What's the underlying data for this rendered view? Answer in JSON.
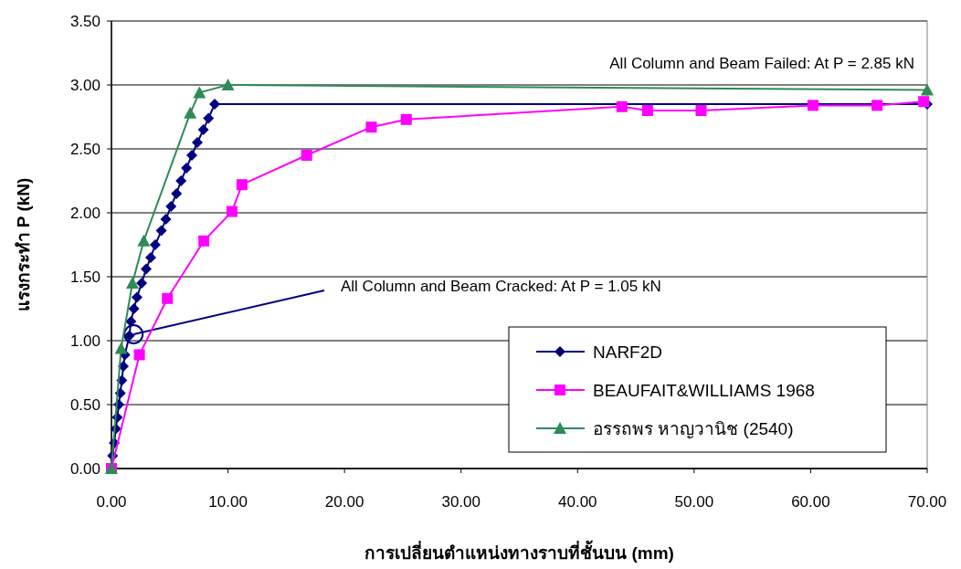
{
  "chart_data": {
    "type": "line",
    "xlabel": "การเปลี่ยนตำแหน่งทางราบที่ชั้นบน (mm)",
    "ylabel": "แรงกระทำ P (kN)",
    "xlim": [
      0,
      70
    ],
    "ylim": [
      0,
      3.5
    ],
    "xticks": [
      {
        "value": 0,
        "label": "0.00"
      },
      {
        "value": 10,
        "label": "10.00"
      },
      {
        "value": 20,
        "label": "20.00"
      },
      {
        "value": 30,
        "label": "30.00"
      },
      {
        "value": 40,
        "label": "40.00"
      },
      {
        "value": 50,
        "label": "50.00"
      },
      {
        "value": 60,
        "label": "60.00"
      },
      {
        "value": 70,
        "label": "70.00"
      }
    ],
    "yticks": [
      {
        "value": 0,
        "label": "0.00"
      },
      {
        "value": 0.5,
        "label": "0.50"
      },
      {
        "value": 1,
        "label": "1.00"
      },
      {
        "value": 1.5,
        "label": "1.50"
      },
      {
        "value": 2,
        "label": "2.00"
      },
      {
        "value": 2.5,
        "label": "2.50"
      },
      {
        "value": 3,
        "label": "3.00"
      },
      {
        "value": 3.5,
        "label": "3.50"
      }
    ],
    "grid": "y",
    "legend": "bottom right",
    "annotations": [
      "All Column and Beam Failed: At P = 2.85 kN",
      {
        "text": "All Column and Beam Cracked: At P = 1.05 kN",
        "x": 1.9,
        "y": 1.05
      }
    ],
    "series": [
      {
        "name": "NARF2D",
        "color": "#000080",
        "marker": "diamond",
        "x": [
          0.1,
          0.24,
          0.37,
          0.5,
          0.63,
          0.76,
          0.89,
          1.02,
          1.15,
          1.54,
          1.67,
          1.93,
          2.19,
          2.59,
          2.98,
          3.37,
          3.76,
          4.28,
          4.67,
          5.11,
          5.58,
          5.97,
          6.44,
          6.9,
          7.37,
          7.89,
          8.33,
          8.86,
          70
        ],
        "values": [
          0.1,
          0.2,
          0.31,
          0.4,
          0.5,
          0.59,
          0.69,
          0.8,
          0.89,
          1.04,
          1.15,
          1.25,
          1.34,
          1.45,
          1.56,
          1.65,
          1.75,
          1.86,
          1.95,
          2.05,
          2.15,
          2.25,
          2.35,
          2.45,
          2.55,
          2.65,
          2.74,
          2.85,
          2.85
        ]
      },
      {
        "name": "BEAUFAIT&WILLIAMS 1968",
        "color": "#ff00ff",
        "marker": "square",
        "x": [
          0,
          2.4,
          4.8,
          7.93,
          10.34,
          11.2,
          16.75,
          22.3,
          25.3,
          43.8,
          46,
          50.6,
          60.2,
          65.7,
          69.7
        ],
        "values": [
          0,
          0.89,
          1.33,
          1.78,
          2.01,
          2.22,
          2.45,
          2.67,
          2.73,
          2.83,
          2.8,
          2.8,
          2.84,
          2.84,
          2.87
        ]
      },
      {
        "name": "อรรถพร หาญวานิช (2540)",
        "color": "#2e8b57",
        "marker": "triangle",
        "x": [
          0,
          0.83,
          1.8,
          2.77,
          6.76,
          7.55,
          10.0,
          70
        ],
        "values": [
          0,
          0.94,
          1.45,
          1.78,
          2.78,
          2.94,
          3.0,
          2.96
        ]
      }
    ]
  }
}
